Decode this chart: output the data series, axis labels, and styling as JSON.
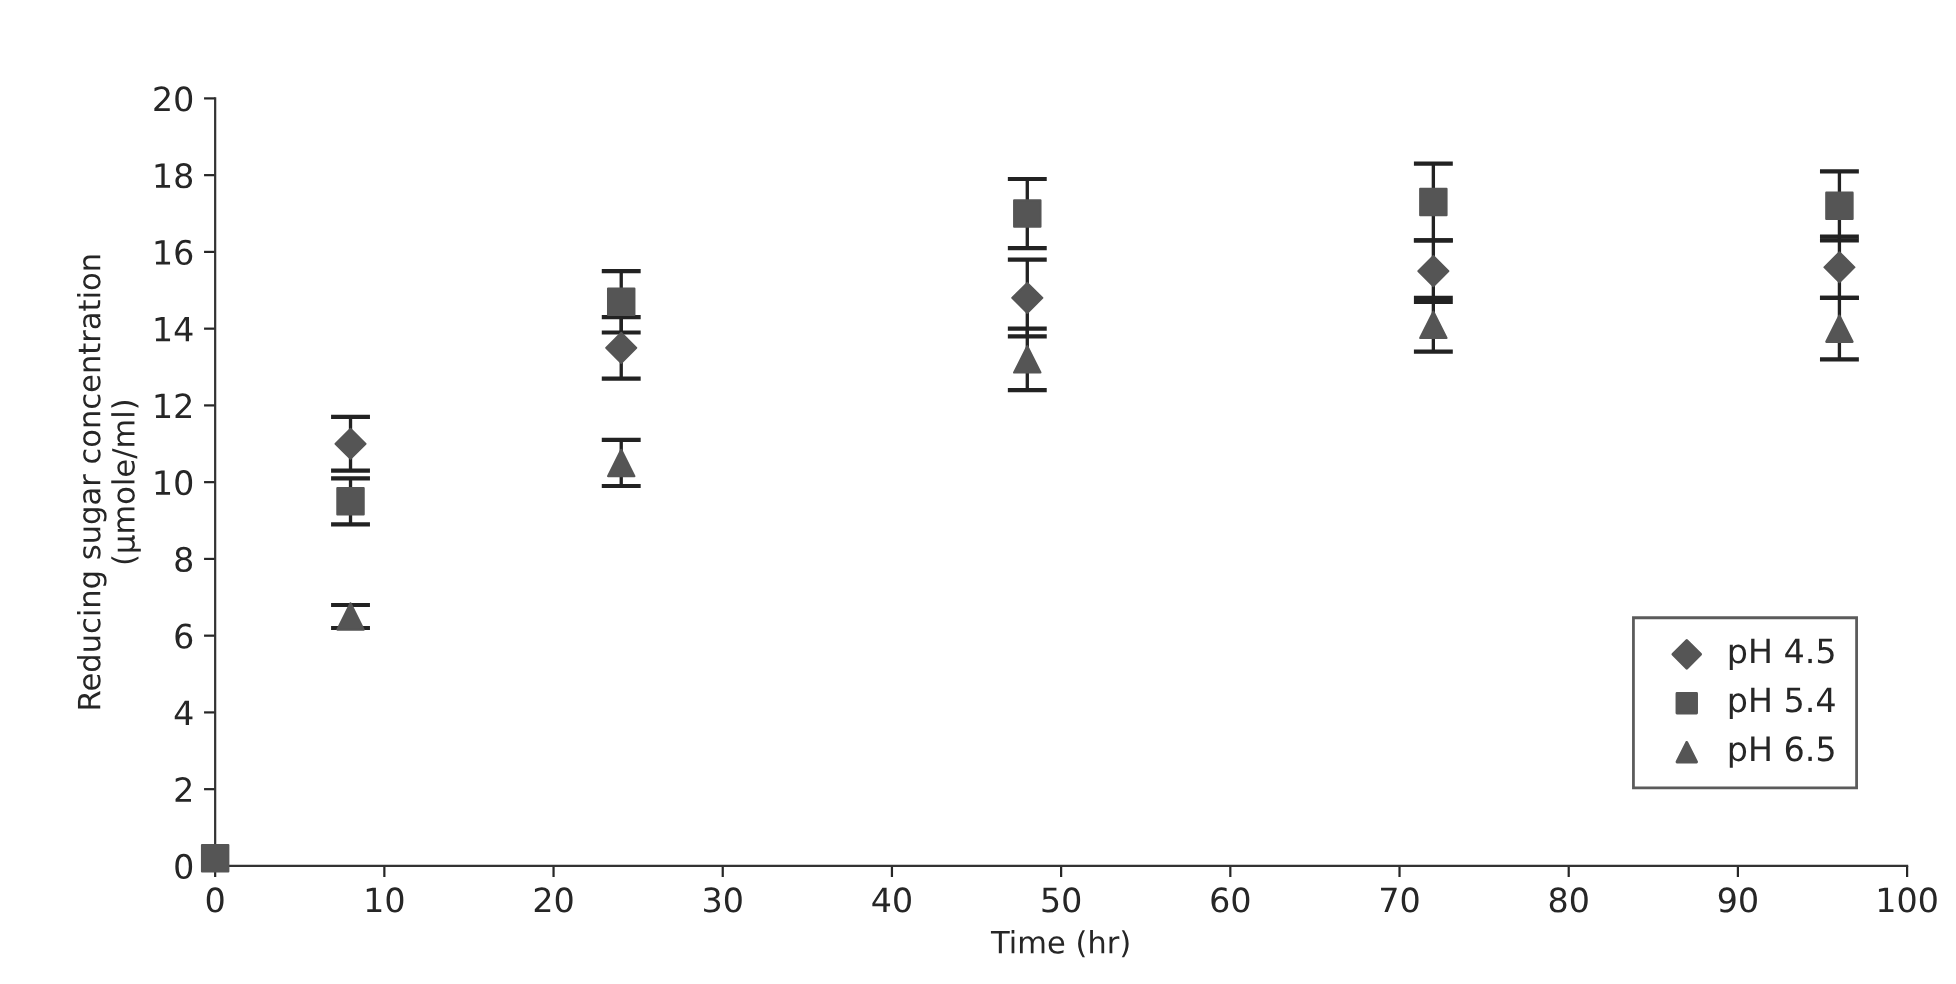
{
  "chart_data": {
    "type": "scatter",
    "xlabel": "Time (hr)",
    "ylabel": "Reducing sugar concentration\n(µmole/ml)",
    "x": [
      0,
      8,
      24,
      48,
      72,
      96
    ],
    "series": [
      {
        "name": "pH 4.5",
        "color": "#555555",
        "marker": "diamond",
        "values": [
          null,
          11.0,
          13.5,
          14.8,
          15.5,
          15.6
        ],
        "errors": [
          null,
          0.7,
          0.8,
          1.0,
          0.8,
          0.8
        ]
      },
      {
        "name": "pH 5.4",
        "color": "#555555",
        "marker": "square",
        "values": [
          0.2,
          9.5,
          14.7,
          17.0,
          17.3,
          17.2
        ],
        "errors": [
          null,
          0.6,
          0.8,
          0.9,
          1.0,
          0.9
        ]
      },
      {
        "name": "pH 6.5",
        "color": "#555555",
        "marker": "triangle",
        "values": [
          null,
          6.5,
          10.5,
          13.2,
          14.1,
          14.0
        ],
        "errors": [
          null,
          0.3,
          0.6,
          0.8,
          0.7,
          0.8
        ]
      }
    ],
    "xlim": [
      0,
      100
    ],
    "xticks": [
      0,
      10,
      20,
      30,
      40,
      50,
      60,
      70,
      80,
      90,
      100
    ],
    "ylim": [
      0,
      20
    ],
    "yticks": [
      0,
      2,
      4,
      6,
      8,
      10,
      12,
      14,
      16,
      18,
      20
    ],
    "grid": false,
    "legend": "bottom right"
  }
}
